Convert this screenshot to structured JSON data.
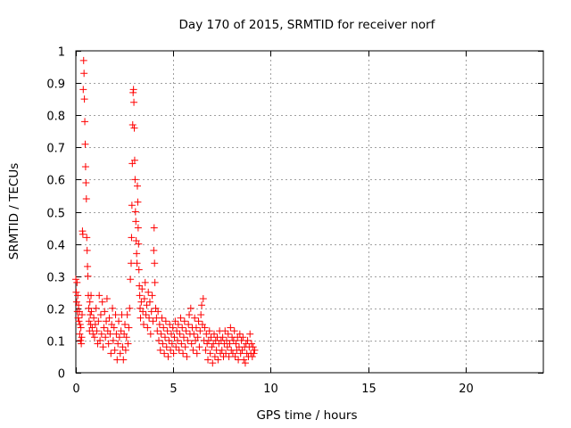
{
  "chart_data": {
    "type": "scatter",
    "title": "Day 170 of 2015, SRMTID for receiver norf",
    "xlabel": "GPS time / hours",
    "ylabel": "SRMTID / TECUs",
    "xlim": [
      0,
      24
    ],
    "ylim": [
      0,
      1
    ],
    "xticks": [
      0,
      5,
      10,
      15,
      20
    ],
    "xtick_labels": [
      "0",
      "5",
      "10",
      "15",
      "20"
    ],
    "yticks": [
      0,
      0.1,
      0.2,
      0.3,
      0.4,
      0.5,
      0.6,
      0.7,
      0.8,
      0.9,
      1
    ],
    "ytick_labels": [
      "0",
      "0.1",
      "0.2",
      "0.3",
      "0.4",
      "0.5",
      "0.6",
      "0.7",
      "0.8",
      "0.9",
      "1"
    ],
    "grid": true,
    "marker": "plus",
    "color": "#ff0000",
    "series": [
      {
        "name": "SRMTID",
        "points": [
          [
            0.0,
            0.29
          ],
          [
            0.02,
            0.25
          ],
          [
            0.04,
            0.22
          ],
          [
            0.06,
            0.28
          ],
          [
            0.08,
            0.19
          ],
          [
            0.1,
            0.24
          ],
          [
            0.12,
            0.17
          ],
          [
            0.14,
            0.21
          ],
          [
            0.16,
            0.16
          ],
          [
            0.18,
            0.19
          ],
          [
            0.2,
            0.12
          ],
          [
            0.22,
            0.15
          ],
          [
            0.24,
            0.1
          ],
          [
            0.26,
            0.14
          ],
          [
            0.28,
            0.09
          ],
          [
            0.3,
            0.11
          ],
          [
            0.32,
            0.18
          ],
          [
            0.34,
            0.44
          ],
          [
            0.36,
            0.43
          ],
          [
            0.38,
            0.88
          ],
          [
            0.4,
            0.97
          ],
          [
            0.42,
            0.93
          ],
          [
            0.44,
            0.85
          ],
          [
            0.46,
            0.78
          ],
          [
            0.48,
            0.71
          ],
          [
            0.5,
            0.64
          ],
          [
            0.52,
            0.59
          ],
          [
            0.54,
            0.54
          ],
          [
            0.56,
            0.42
          ],
          [
            0.58,
            0.38
          ],
          [
            0.6,
            0.33
          ],
          [
            0.62,
            0.3
          ],
          [
            0.64,
            0.24
          ],
          [
            0.66,
            0.2
          ],
          [
            0.68,
            0.16
          ],
          [
            0.7,
            0.13
          ],
          [
            0.72,
            0.22
          ],
          [
            0.74,
            0.18
          ],
          [
            0.76,
            0.15
          ],
          [
            0.78,
            0.24
          ],
          [
            0.8,
            0.19
          ],
          [
            0.84,
            0.14
          ],
          [
            0.88,
            0.12
          ],
          [
            0.92,
            0.17
          ],
          [
            0.96,
            0.11
          ],
          [
            1.0,
            0.15
          ],
          [
            1.04,
            0.2
          ],
          [
            1.08,
            0.13
          ],
          [
            1.12,
            0.09
          ],
          [
            1.16,
            0.16
          ],
          [
            1.2,
            0.24
          ],
          [
            1.24,
            0.1
          ],
          [
            1.28,
            0.18
          ],
          [
            1.32,
            0.12
          ],
          [
            1.36,
            0.22
          ],
          [
            1.4,
            0.08
          ],
          [
            1.44,
            0.14
          ],
          [
            1.48,
            0.19
          ],
          [
            1.52,
            0.11
          ],
          [
            1.56,
            0.16
          ],
          [
            1.6,
            0.23
          ],
          [
            1.64,
            0.13
          ],
          [
            1.68,
            0.09
          ],
          [
            1.72,
            0.17
          ],
          [
            1.76,
            0.12
          ],
          [
            1.8,
            0.06
          ],
          [
            1.84,
            0.15
          ],
          [
            1.88,
            0.2
          ],
          [
            1.92,
            0.1
          ],
          [
            1.96,
            0.14
          ],
          [
            2.0,
            0.07
          ],
          [
            2.04,
            0.18
          ],
          [
            2.08,
            0.12
          ],
          [
            2.12,
            0.04
          ],
          [
            2.16,
            0.09
          ],
          [
            2.2,
            0.16
          ],
          [
            2.24,
            0.11
          ],
          [
            2.28,
            0.06
          ],
          [
            2.32,
            0.13
          ],
          [
            2.36,
            0.18
          ],
          [
            2.4,
            0.08
          ],
          [
            2.44,
            0.04
          ],
          [
            2.48,
            0.12
          ],
          [
            2.52,
            0.15
          ],
          [
            2.56,
            0.07
          ],
          [
            2.6,
            0.11
          ],
          [
            2.64,
            0.18
          ],
          [
            2.68,
            0.09
          ],
          [
            2.72,
            0.14
          ],
          [
            2.76,
            0.2
          ],
          [
            2.8,
            0.29
          ],
          [
            2.84,
            0.34
          ],
          [
            2.86,
            0.42
          ],
          [
            2.88,
            0.52
          ],
          [
            2.9,
            0.65
          ],
          [
            2.92,
            0.77
          ],
          [
            2.94,
            0.87
          ],
          [
            2.96,
            0.88
          ],
          [
            2.98,
            0.84
          ],
          [
            3.0,
            0.76
          ],
          [
            3.02,
            0.66
          ],
          [
            3.04,
            0.6
          ],
          [
            3.06,
            0.5
          ],
          [
            3.08,
            0.47
          ],
          [
            3.1,
            0.41
          ],
          [
            3.12,
            0.37
          ],
          [
            3.14,
            0.34
          ],
          [
            3.16,
            0.58
          ],
          [
            3.18,
            0.53
          ],
          [
            3.2,
            0.45
          ],
          [
            3.22,
            0.4
          ],
          [
            3.24,
            0.32
          ],
          [
            3.26,
            0.27
          ],
          [
            3.28,
            0.24
          ],
          [
            3.3,
            0.2
          ],
          [
            3.32,
            0.17
          ],
          [
            3.36,
            0.22
          ],
          [
            3.4,
            0.26
          ],
          [
            3.44,
            0.19
          ],
          [
            3.48,
            0.15
          ],
          [
            3.52,
            0.23
          ],
          [
            3.56,
            0.28
          ],
          [
            3.6,
            0.18
          ],
          [
            3.64,
            0.21
          ],
          [
            3.68,
            0.14
          ],
          [
            3.72,
            0.25
          ],
          [
            3.76,
            0.17
          ],
          [
            3.8,
            0.22
          ],
          [
            3.84,
            0.12
          ],
          [
            3.88,
            0.19
          ],
          [
            3.92,
            0.24
          ],
          [
            3.96,
            0.16
          ],
          [
            4.0,
            0.38
          ],
          [
            4.02,
            0.45
          ],
          [
            4.04,
            0.34
          ],
          [
            4.06,
            0.28
          ],
          [
            4.1,
            0.2
          ],
          [
            4.14,
            0.17
          ],
          [
            4.18,
            0.13
          ],
          [
            4.22,
            0.19
          ],
          [
            4.26,
            0.1
          ],
          [
            4.3,
            0.15
          ],
          [
            4.34,
            0.07
          ],
          [
            4.38,
            0.12
          ],
          [
            4.42,
            0.17
          ],
          [
            4.46,
            0.09
          ],
          [
            4.5,
            0.14
          ],
          [
            4.54,
            0.06
          ],
          [
            4.58,
            0.11
          ],
          [
            4.62,
            0.16
          ],
          [
            4.66,
            0.08
          ],
          [
            4.7,
            0.13
          ],
          [
            4.74,
            0.05
          ],
          [
            4.78,
            0.1
          ],
          [
            4.82,
            0.15
          ],
          [
            4.86,
            0.07
          ],
          [
            4.9,
            0.12
          ],
          [
            4.94,
            0.09
          ],
          [
            4.98,
            0.14
          ],
          [
            5.02,
            0.06
          ],
          [
            5.06,
            0.11
          ],
          [
            5.1,
            0.16
          ],
          [
            5.14,
            0.08
          ],
          [
            5.18,
            0.13
          ],
          [
            5.22,
            0.1
          ],
          [
            5.26,
            0.15
          ],
          [
            5.3,
            0.07
          ],
          [
            5.34,
            0.12
          ],
          [
            5.38,
            0.17
          ],
          [
            5.42,
            0.09
          ],
          [
            5.46,
            0.14
          ],
          [
            5.5,
            0.06
          ],
          [
            5.54,
            0.11
          ],
          [
            5.58,
            0.16
          ],
          [
            5.62,
            0.08
          ],
          [
            5.66,
            0.13
          ],
          [
            5.7,
            0.05
          ],
          [
            5.74,
            0.1
          ],
          [
            5.78,
            0.15
          ],
          [
            5.82,
            0.18
          ],
          [
            5.86,
            0.12
          ],
          [
            5.9,
            0.2
          ],
          [
            5.94,
            0.09
          ],
          [
            5.98,
            0.14
          ],
          [
            6.02,
            0.07
          ],
          [
            6.06,
            0.12
          ],
          [
            6.1,
            0.17
          ],
          [
            6.14,
            0.1
          ],
          [
            6.18,
            0.14
          ],
          [
            6.22,
            0.06
          ],
          [
            6.26,
            0.11
          ],
          [
            6.3,
            0.16
          ],
          [
            6.34,
            0.08
          ],
          [
            6.38,
            0.13
          ],
          [
            6.42,
            0.18
          ],
          [
            6.46,
            0.21
          ],
          [
            6.5,
            0.15
          ],
          [
            6.54,
            0.23
          ],
          [
            6.58,
            0.1
          ],
          [
            6.62,
            0.14
          ],
          [
            6.66,
            0.07
          ],
          [
            6.7,
            0.12
          ],
          [
            6.74,
            0.09
          ],
          [
            6.78,
            0.04
          ],
          [
            6.82,
            0.1
          ],
          [
            6.86,
            0.13
          ],
          [
            6.9,
            0.06
          ],
          [
            6.94,
            0.11
          ],
          [
            6.98,
            0.08
          ],
          [
            7.02,
            0.03
          ],
          [
            7.06,
            0.09
          ],
          [
            7.1,
            0.12
          ],
          [
            7.14,
            0.05
          ],
          [
            7.18,
            0.1
          ],
          [
            7.22,
            0.07
          ],
          [
            7.26,
            0.11
          ],
          [
            7.3,
            0.04
          ],
          [
            7.34,
            0.09
          ],
          [
            7.38,
            0.13
          ],
          [
            7.42,
            0.06
          ],
          [
            7.46,
            0.1
          ],
          [
            7.5,
            0.07
          ],
          [
            7.54,
            0.11
          ],
          [
            7.58,
            0.05
          ],
          [
            7.62,
            0.09
          ],
          [
            7.66,
            0.13
          ],
          [
            7.7,
            0.06
          ],
          [
            7.74,
            0.1
          ],
          [
            7.78,
            0.08
          ],
          [
            7.82,
            0.12
          ],
          [
            7.86,
            0.05
          ],
          [
            7.9,
            0.09
          ],
          [
            7.94,
            0.14
          ],
          [
            7.98,
            0.07
          ],
          [
            8.02,
            0.11
          ],
          [
            8.06,
            0.06
          ],
          [
            8.1,
            0.1
          ],
          [
            8.14,
            0.13
          ],
          [
            8.18,
            0.05
          ],
          [
            8.22,
            0.09
          ],
          [
            8.26,
            0.07
          ],
          [
            8.3,
            0.11
          ],
          [
            8.34,
            0.04
          ],
          [
            8.38,
            0.08
          ],
          [
            8.42,
            0.12
          ],
          [
            8.46,
            0.06
          ],
          [
            8.5,
            0.1
          ],
          [
            8.54,
            0.07
          ],
          [
            8.58,
            0.11
          ],
          [
            8.62,
            0.04
          ],
          [
            8.66,
            0.08
          ],
          [
            8.7,
            0.03
          ],
          [
            8.74,
            0.09
          ],
          [
            8.78,
            0.06
          ],
          [
            8.82,
            0.1
          ],
          [
            8.86,
            0.05
          ],
          [
            8.9,
            0.08
          ],
          [
            8.94,
            0.12
          ],
          [
            8.98,
            0.06
          ],
          [
            9.02,
            0.09
          ],
          [
            9.06,
            0.05
          ],
          [
            9.1,
            0.08
          ],
          [
            9.14,
            0.06
          ],
          [
            9.18,
            0.07
          ]
        ]
      }
    ]
  }
}
